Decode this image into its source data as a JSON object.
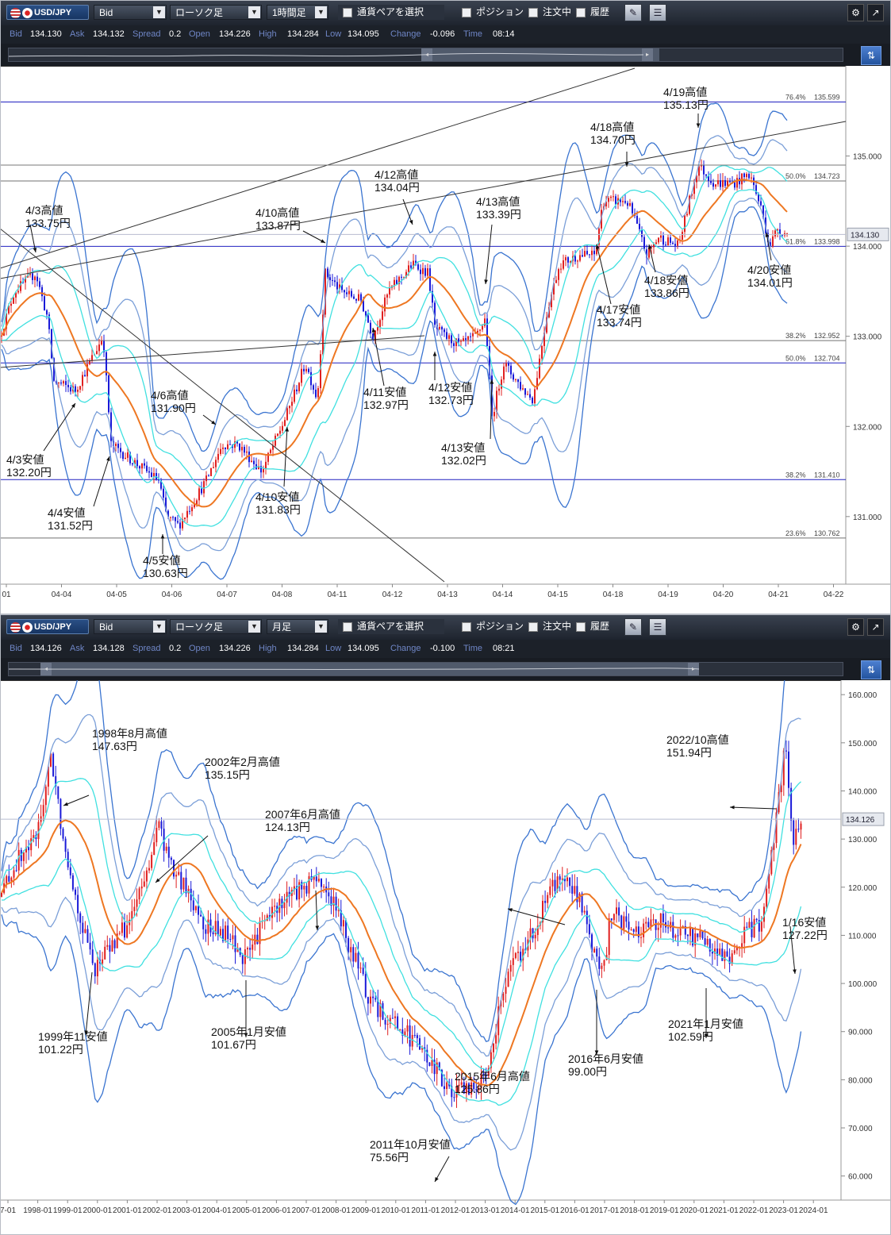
{
  "panels": [
    {
      "toolbar": {
        "symbol": "USD/JPY",
        "price_side": "Bid",
        "chart_type": "ローソク足",
        "timeframe": "1時間足",
        "pair_select": "通貨ペアを選択",
        "position": "ポジション",
        "orders": "注文中",
        "history": "履歴"
      },
      "quote": {
        "bid_label": "Bid",
        "bid": "134.130",
        "ask_label": "Ask",
        "ask": "134.132",
        "spread_label": "Spread",
        "spread": "0.2",
        "open_label": "Open",
        "open": "134.226",
        "high_label": "High",
        "high": "134.284",
        "low_label": "Low",
        "low": "134.095",
        "change_label": "Change",
        "change": "-0.096",
        "time_label": "Time",
        "time": "08:14"
      },
      "chart_data": {
        "type": "candlestick",
        "ylim": [
          130.25,
          136.0
        ],
        "y_ticks": [
          135.0,
          134.0,
          133.0,
          132.0,
          131.0
        ],
        "y_tick_labels": [
          "135.000",
          "134.000",
          "133.000",
          "132.000",
          "131.000"
        ],
        "x_tick_labels": [
          "01",
          "04-04",
          "04-05",
          "04-06",
          "04-07",
          "04-08",
          "04-11",
          "04-12",
          "04-13",
          "04-14",
          "04-15",
          "04-18",
          "04-19",
          "04-20",
          "04-21",
          "04-22"
        ],
        "current_price": 134.13,
        "current_price_label": "134.130",
        "fib_levels": [
          {
            "pct": "76.4%",
            "value": 135.599,
            "value_label": "135.599",
            "color": "#2020c0"
          },
          {
            "pct": "50.0%",
            "value": 134.723,
            "value_label": "134.723",
            "color": "#707070"
          },
          {
            "pct": "61.8%",
            "value": 133.998,
            "value_label": "133.998",
            "color": "#2020c0"
          },
          {
            "pct": "38.2%",
            "value": 132.952,
            "value_label": "132.952",
            "color": "#707070"
          },
          {
            "pct": "50.0%",
            "value": 132.704,
            "value_label": "132.704",
            "color": "#2020c0"
          },
          {
            "pct": "38.2%",
            "value": 131.41,
            "value_label": "131.410",
            "color": "#2020c0"
          },
          {
            "pct": "23.6%",
            "value": 130.762,
            "value_label": "130.762",
            "color": "#707070"
          }
        ],
        "anchors": [
          [
            0,
            133.0
          ],
          [
            18,
            133.5
          ],
          [
            45,
            133.7
          ],
          [
            60,
            133.2
          ],
          [
            68,
            132.5
          ],
          [
            95,
            132.4
          ],
          [
            130,
            133.0
          ],
          [
            140,
            131.8
          ],
          [
            170,
            131.6
          ],
          [
            200,
            131.4
          ],
          [
            210,
            131.0
          ],
          [
            225,
            130.9
          ],
          [
            260,
            131.4
          ],
          [
            280,
            131.8
          ],
          [
            300,
            131.8
          ],
          [
            330,
            131.5
          ],
          [
            360,
            132.1
          ],
          [
            385,
            132.7
          ],
          [
            400,
            132.3
          ],
          [
            410,
            133.7
          ],
          [
            430,
            133.5
          ],
          [
            455,
            133.4
          ],
          [
            470,
            133.0
          ],
          [
            490,
            133.5
          ],
          [
            520,
            133.8
          ],
          [
            540,
            133.7
          ],
          [
            548,
            133.1
          ],
          [
            560,
            133.0
          ],
          [
            580,
            132.9
          ],
          [
            600,
            133.0
          ],
          [
            612,
            133.2
          ],
          [
            620,
            132.1
          ],
          [
            635,
            132.7
          ],
          [
            660,
            132.4
          ],
          [
            672,
            132.3
          ],
          [
            690,
            133.3
          ],
          [
            705,
            133.8
          ],
          [
            730,
            133.9
          ],
          [
            750,
            133.9
          ],
          [
            760,
            134.5
          ],
          [
            790,
            134.5
          ],
          [
            800,
            134.3
          ],
          [
            815,
            133.9
          ],
          [
            830,
            134.1
          ],
          [
            855,
            134.0
          ],
          [
            880,
            134.9
          ],
          [
            900,
            134.7
          ],
          [
            925,
            134.7
          ],
          [
            945,
            134.8
          ],
          [
            960,
            134.4
          ],
          [
            970,
            134.0
          ],
          [
            980,
            134.2
          ],
          [
            992,
            134.13
          ]
        ]
      },
      "annotations": [
        {
          "label": "4/3高値\n133.75円"
        },
        {
          "label": "4/3安値\n132.20円"
        },
        {
          "label": "4/4安値\n131.52円"
        },
        {
          "label": "4/5安値\n130.63円"
        },
        {
          "label": "4/6高値\n131.90円"
        },
        {
          "label": "4/10安値\n131.83円"
        },
        {
          "label": "4/10高値\n133.87円"
        },
        {
          "label": "4/11安値\n132.97円"
        },
        {
          "label": "4/12高値\n134.04円"
        },
        {
          "label": "4/12安値\n132.73円"
        },
        {
          "label": "4/13高値\n133.39円"
        },
        {
          "label": "4/13安値\n132.02円"
        },
        {
          "label": "4/17安値\n133.74円"
        },
        {
          "label": "4/18高値\n134.70円"
        },
        {
          "label": "4/18安値\n133.86円"
        },
        {
          "label": "4/19高値\n135.13円"
        },
        {
          "label": "4/20安値\n134.01円"
        }
      ]
    },
    {
      "toolbar": {
        "symbol": "USD/JPY",
        "price_side": "Bid",
        "chart_type": "ローソク足",
        "timeframe": "月足",
        "pair_select": "通貨ペアを選択",
        "position": "ポジション",
        "orders": "注文中",
        "history": "履歴"
      },
      "quote": {
        "bid_label": "Bid",
        "bid": "134.126",
        "ask_label": "Ask",
        "ask": "134.128",
        "spread_label": "Spread",
        "spread": "0.2",
        "open_label": "Open",
        "open": "134.226",
        "high_label": "High",
        "high": "134.284",
        "low_label": "Low",
        "low": "134.095",
        "change_label": "Change",
        "change": "-0.100",
        "time_label": "Time",
        "time": "08:21"
      },
      "chart_data": {
        "type": "candlestick",
        "ylim": [
          55,
          163
        ],
        "y_ticks": [
          160,
          150,
          140,
          130,
          120,
          110,
          100,
          90,
          80,
          70,
          60
        ],
        "y_tick_labels": [
          "160.000",
          "150.000",
          "140.000",
          "130.000",
          "120.000",
          "110.000",
          "100.000",
          "90.000",
          "80.000",
          "70.000",
          "60.000"
        ],
        "x_tick_labels": [
          "7-01",
          "1998-01",
          "1999-01",
          "2000-01",
          "2001-01",
          "2002-01",
          "2003-01",
          "2004-01",
          "2005-01",
          "2006-01",
          "2007-01",
          "2008-01",
          "2009-01",
          "2010-01",
          "2011-01",
          "2012-01",
          "2013-01",
          "2014-01",
          "2015-01",
          "2016-01",
          "2017-01",
          "2018-01",
          "2019-01",
          "2020-01",
          "2021-01",
          "2022-01",
          "2023-01",
          "2024-01"
        ],
        "current_price": 134.126,
        "current_price_label": "134.126",
        "fib_levels": [],
        "anchors": [
          [
            0,
            118
          ],
          [
            20,
            125
          ],
          [
            45,
            130
          ],
          [
            65,
            147
          ],
          [
            75,
            135
          ],
          [
            95,
            118
          ],
          [
            118,
            103
          ],
          [
            140,
            108
          ],
          [
            160,
            112
          ],
          [
            180,
            120
          ],
          [
            200,
            133
          ],
          [
            215,
            124
          ],
          [
            240,
            118
          ],
          [
            260,
            112
          ],
          [
            285,
            110
          ],
          [
            310,
            105
          ],
          [
            330,
            112
          ],
          [
            360,
            118
          ],
          [
            400,
            122
          ],
          [
            420,
            117
          ],
          [
            440,
            108
          ],
          [
            470,
            95
          ],
          [
            500,
            92
          ],
          [
            520,
            88
          ],
          [
            550,
            82
          ],
          [
            570,
            77
          ],
          [
            590,
            78
          ],
          [
            610,
            80
          ],
          [
            640,
            102
          ],
          [
            670,
            110
          ],
          [
            690,
            118
          ],
          [
            710,
            123
          ],
          [
            730,
            118
          ],
          [
            745,
            108
          ],
          [
            760,
            101
          ],
          [
            770,
            115
          ],
          [
            800,
            111
          ],
          [
            830,
            113
          ],
          [
            850,
            111
          ],
          [
            870,
            110
          ],
          [
            895,
            108
          ],
          [
            920,
            104
          ],
          [
            935,
            110
          ],
          [
            960,
            113
          ],
          [
            975,
            130
          ],
          [
            990,
            150
          ],
          [
            1000,
            130
          ],
          [
            1012,
            134.13
          ]
        ]
      },
      "annotations": [
        {
          "label": "1998年8月高値\n147.63円"
        },
        {
          "label": "1999年11安値\n101.22円"
        },
        {
          "label": "2002年2月高値\n135.15円"
        },
        {
          "label": "2005年1月安値\n101.67円"
        },
        {
          "label": "2007年6月高値\n124.13円"
        },
        {
          "label": "2011年10月安値\n75.56円"
        },
        {
          "label": "2015年6月高値\n125.86円"
        },
        {
          "label": "2016年6月安値\n99.00円"
        },
        {
          "label": "2021年1月安値\n102.59円"
        },
        {
          "label": "2022/10高値\n151.94円"
        },
        {
          "label": "1/16安値\n127.22円"
        }
      ]
    }
  ],
  "colors": {
    "up": "#e02020",
    "down": "#1a1ad8",
    "ma": "#ee7722",
    "band1": "#40e0e0",
    "band2": "#7b9fd8",
    "band3": "#3a74d0",
    "grid": "#d0d0d0"
  }
}
